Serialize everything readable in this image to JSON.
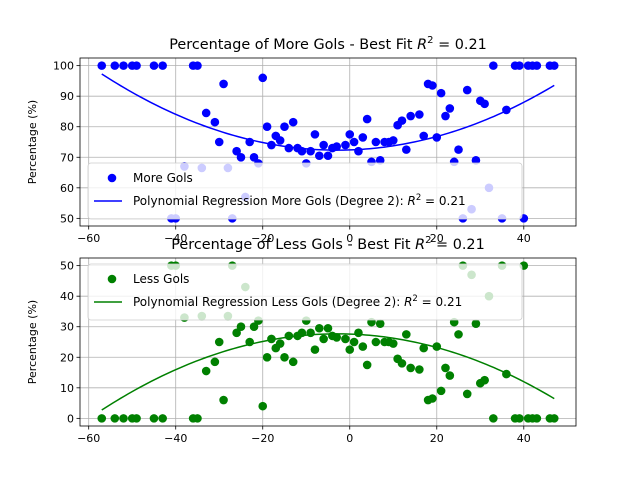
{
  "chart_data": [
    {
      "type": "scatter",
      "title": "Percentage of More Gols - Best Fit R² = 0.21",
      "title_main": "Percentage of More Gols - Best Fit ",
      "title_r2": "R",
      "title_sup": "2",
      "title_eq": " = 0.21",
      "xlabel": "",
      "ylabel": "Percentage (%)",
      "xlim": [
        -62,
        52
      ],
      "ylim": [
        47.5,
        102.5
      ],
      "xticks": [
        -60,
        -40,
        -20,
        0,
        20,
        40
      ],
      "yticks": [
        50,
        60,
        70,
        80,
        90,
        100
      ],
      "grid": true,
      "legend_placement": "lower-left",
      "color": "#0000ff",
      "series": [
        {
          "name": "More Gols",
          "marker": "circle",
          "points": [
            [
              -57,
              100
            ],
            [
              -54,
              100
            ],
            [
              -52,
              100
            ],
            [
              -50,
              100
            ],
            [
              -49,
              100
            ],
            [
              -45,
              100
            ],
            [
              -43,
              100
            ],
            [
              -41,
              50
            ],
            [
              -40,
              50
            ],
            [
              -38,
              67
            ],
            [
              -36,
              100
            ],
            [
              -35,
              100
            ],
            [
              -34,
              66.5
            ],
            [
              -33,
              84.5
            ],
            [
              -31,
              81.5
            ],
            [
              -30,
              75
            ],
            [
              -29,
              94
            ],
            [
              -28,
              66.5
            ],
            [
              -27,
              50
            ],
            [
              -26,
              72
            ],
            [
              -25,
              70
            ],
            [
              -24,
              57
            ],
            [
              -23,
              75
            ],
            [
              -22,
              70
            ],
            [
              -21,
              68
            ],
            [
              -20,
              96
            ],
            [
              -19,
              80
            ],
            [
              -18,
              74
            ],
            [
              -17,
              77
            ],
            [
              -16,
              75.5
            ],
            [
              -15,
              80
            ],
            [
              -14,
              73
            ],
            [
              -13,
              81.5
            ],
            [
              -12,
              73
            ],
            [
              -11,
              72
            ],
            [
              -10,
              68
            ],
            [
              -9,
              72
            ],
            [
              -8,
              77.5
            ],
            [
              -7,
              70.5
            ],
            [
              -6,
              74
            ],
            [
              -5,
              70.5
            ],
            [
              -4,
              73
            ],
            [
              -3,
              73.5
            ],
            [
              -1,
              74
            ],
            [
              0,
              77.5
            ],
            [
              1,
              75
            ],
            [
              2,
              72
            ],
            [
              3,
              76.5
            ],
            [
              4,
              82.5
            ],
            [
              5,
              68.5
            ],
            [
              6,
              75
            ],
            [
              7,
              69
            ],
            [
              8,
              75
            ],
            [
              9,
              75
            ],
            [
              10,
              75.5
            ],
            [
              11,
              80.5
            ],
            [
              12,
              82
            ],
            [
              13,
              72.5
            ],
            [
              14,
              83.5
            ],
            [
              16,
              84
            ],
            [
              17,
              77
            ],
            [
              18,
              94
            ],
            [
              19,
              93.5
            ],
            [
              20,
              76.5
            ],
            [
              21,
              91
            ],
            [
              22,
              83.5
            ],
            [
              23,
              86
            ],
            [
              24,
              68.5
            ],
            [
              25,
              72.5
            ],
            [
              26,
              50
            ],
            [
              27,
              92
            ],
            [
              28,
              53
            ],
            [
              29,
              69
            ],
            [
              30,
              88.5
            ],
            [
              31,
              87.5
            ],
            [
              32,
              60
            ],
            [
              33,
              100
            ],
            [
              35,
              50
            ],
            [
              36,
              85.5
            ],
            [
              38,
              100
            ],
            [
              39,
              100
            ],
            [
              40,
              50
            ],
            [
              41,
              100
            ],
            [
              42,
              100
            ],
            [
              43,
              100
            ],
            [
              46,
              100
            ],
            [
              47,
              100
            ]
          ]
        },
        {
          "name": "Polynomial Regression More Gols (Degree 2): R² = 0.21",
          "legend_main": "Polynomial Regression More Gols (Degree 2): ",
          "legend_eq": " = 0.21",
          "type": "line",
          "polynomial": {
            "a": 0.00852,
            "b": 0.0493,
            "c": 72.4
          },
          "x_range": [
            -57,
            47
          ]
        }
      ]
    },
    {
      "type": "scatter",
      "title": "Percentage of Less Gols - Best Fit R² = 0.21",
      "title_main": "Percentage of Less Gols - Best Fit ",
      "title_r2": "R",
      "title_sup": "2",
      "title_eq": " = 0.21",
      "xlabel": "",
      "ylabel": "Percentage (%)",
      "xlim": [
        -62,
        52
      ],
      "ylim": [
        -2.5,
        52.5
      ],
      "xticks": [
        -60,
        -40,
        -20,
        0,
        20,
        40
      ],
      "yticks": [
        0,
        10,
        20,
        30,
        40,
        50
      ],
      "grid": true,
      "legend_placement": "upper-left",
      "color": "#008000",
      "series": [
        {
          "name": "Less Gols",
          "marker": "circle",
          "points": [
            [
              -57,
              0
            ],
            [
              -54,
              0
            ],
            [
              -52,
              0
            ],
            [
              -50,
              0
            ],
            [
              -49,
              0
            ],
            [
              -45,
              0
            ],
            [
              -43,
              0
            ],
            [
              -41,
              50
            ],
            [
              -40,
              50
            ],
            [
              -38,
              33
            ],
            [
              -36,
              0
            ],
            [
              -35,
              0
            ],
            [
              -34,
              33.5
            ],
            [
              -33,
              15.5
            ],
            [
              -31,
              18.5
            ],
            [
              -30,
              25
            ],
            [
              -29,
              6
            ],
            [
              -28,
              33.5
            ],
            [
              -27,
              50
            ],
            [
              -26,
              28
            ],
            [
              -25,
              30
            ],
            [
              -24,
              43
            ],
            [
              -23,
              25
            ],
            [
              -22,
              30
            ],
            [
              -21,
              32
            ],
            [
              -20,
              4
            ],
            [
              -19,
              20
            ],
            [
              -18,
              26
            ],
            [
              -17,
              23
            ],
            [
              -16,
              24.5
            ],
            [
              -15,
              20
            ],
            [
              -14,
              27
            ],
            [
              -13,
              18.5
            ],
            [
              -12,
              27
            ],
            [
              -11,
              28
            ],
            [
              -10,
              32
            ],
            [
              -9,
              28
            ],
            [
              -8,
              22.5
            ],
            [
              -7,
              29.5
            ],
            [
              -6,
              26
            ],
            [
              -5,
              29.5
            ],
            [
              -4,
              27
            ],
            [
              -3,
              26.5
            ],
            [
              -1,
              26
            ],
            [
              0,
              22.5
            ],
            [
              1,
              25
            ],
            [
              2,
              28
            ],
            [
              3,
              23.5
            ],
            [
              4,
              17.5
            ],
            [
              5,
              31.5
            ],
            [
              6,
              25
            ],
            [
              7,
              31
            ],
            [
              8,
              25
            ],
            [
              9,
              25
            ],
            [
              10,
              24.5
            ],
            [
              11,
              19.5
            ],
            [
              12,
              18
            ],
            [
              13,
              27.5
            ],
            [
              14,
              16.5
            ],
            [
              16,
              16
            ],
            [
              17,
              23
            ],
            [
              18,
              6
            ],
            [
              19,
              6.5
            ],
            [
              20,
              23.5
            ],
            [
              21,
              9
            ],
            [
              22,
              16.5
            ],
            [
              23,
              14
            ],
            [
              24,
              31.5
            ],
            [
              25,
              27.5
            ],
            [
              26,
              50
            ],
            [
              27,
              8
            ],
            [
              28,
              47
            ],
            [
              29,
              31
            ],
            [
              30,
              11.5
            ],
            [
              31,
              12.5
            ],
            [
              32,
              40
            ],
            [
              33,
              0
            ],
            [
              35,
              50
            ],
            [
              36,
              14.5
            ],
            [
              38,
              0
            ],
            [
              39,
              0
            ],
            [
              40,
              50
            ],
            [
              41,
              0
            ],
            [
              42,
              0
            ],
            [
              43,
              0
            ],
            [
              46,
              0
            ],
            [
              47,
              0
            ]
          ]
        },
        {
          "name": "Polynomial Regression Less Gols (Degree 2): R² = 0.21",
          "legend_main": "Polynomial Regression Less Gols (Degree 2): ",
          "legend_eq": " = 0.21",
          "type": "line",
          "polynomial": {
            "a": -0.00852,
            "b": -0.0493,
            "c": 27.6
          },
          "x_range": [
            -57,
            47
          ]
        }
      ]
    }
  ]
}
